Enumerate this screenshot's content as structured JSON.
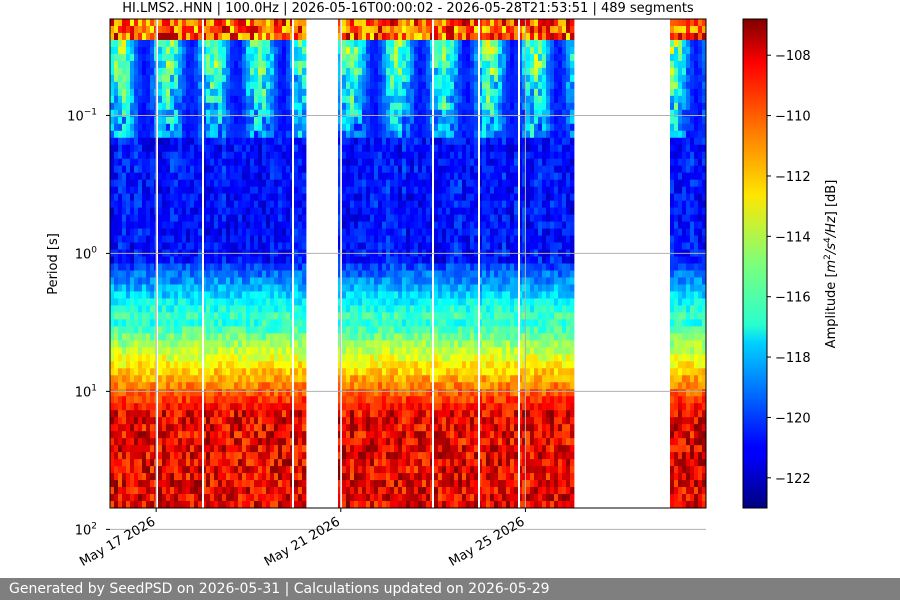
{
  "chart_data": {
    "type": "heatmap",
    "title": "HI.LMS2..HNN | 100.0Hz | 2026-05-16T00:00:02 - 2026-05-28T21:53:51 | 489 segments",
    "ylabel": "Period [s]",
    "y_scale": "log",
    "y_inverted": true,
    "ylim": [
      0.02,
      70
    ],
    "yticks": [
      {
        "value": 0.1,
        "base": "10",
        "exp": "−1"
      },
      {
        "value": 1,
        "base": "10",
        "exp": "0"
      },
      {
        "value": 10,
        "base": "10",
        "exp": "1"
      },
      {
        "value": 100,
        "base": "10",
        "exp": "2"
      }
    ],
    "xlim": [
      "2026-05-16T00:00:02",
      "2026-05-28T21:53:51"
    ],
    "xticks": [
      {
        "date": "2026-05-17",
        "label": "May 17 2026"
      },
      {
        "date": "2026-05-21",
        "label": "May 21 2026"
      },
      {
        "date": "2026-05-25",
        "label": "May 25 2026"
      }
    ],
    "grid": true,
    "data_gaps": [
      {
        "start": "2026-05-20T05:00",
        "end": "2026-05-20T22:00"
      },
      {
        "start": "2026-05-26T02:00",
        "end": "2026-05-28T04:00"
      }
    ],
    "colorbar": {
      "label": "Amplitude [m²/s⁴/Hz] [dB]",
      "min": -123,
      "max": -106.8,
      "ticks": [
        -108,
        -110,
        -112,
        -114,
        -116,
        -118,
        -120,
        -122
      ],
      "tick_labels": [
        "−108",
        "−110",
        "−112",
        "−114",
        "−116",
        "−118",
        "−120",
        "−122"
      ],
      "colormap": "jet"
    }
  },
  "footer": {
    "text": "Generated by SeedPSD on 2026-05-31 | Calculations updated on 2026-05-29"
  },
  "colors": {
    "footer_bg": "#7f7f7f",
    "gridline": "#b0b0b0"
  }
}
